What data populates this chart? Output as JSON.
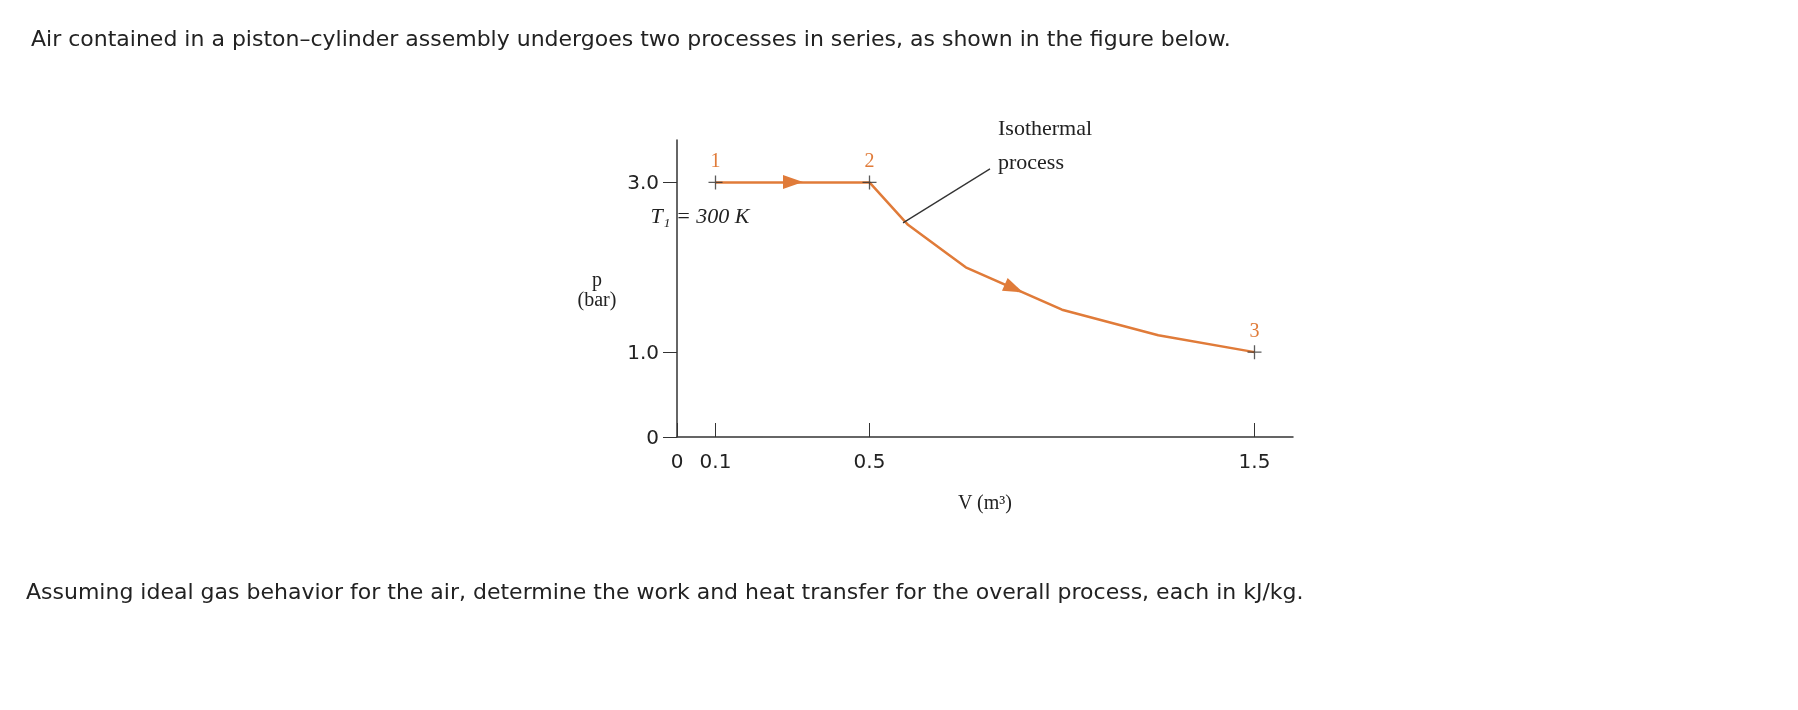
{
  "chart_data": {
    "type": "line",
    "title": "Air contained in a piston–cylinder assembly undergoes two processes in series, as shown in the figure below.",
    "xlabel": "V (m³)",
    "ylabel": "p\n(bar)",
    "series": [
      {
        "color": "#e07b39",
        "x": [
          0.1,
          0.5
        ],
        "values": [
          3.0,
          3.0
        ]
      },
      {
        "color": "#e07b39",
        "x": [
          0.5,
          0.6,
          0.75,
          1.0,
          1.25,
          1.5
        ],
        "values": [
          3.0,
          2.5,
          2.0,
          1.5,
          1.2,
          1.0
        ]
      },
      {
        "type": "scatter",
        "marker": "cross",
        "color": "#333333",
        "x": [
          0.1,
          0.5,
          1.5
        ],
        "values": [
          3.0,
          3.0,
          1.0
        ]
      }
    ],
    "xlim": [
      0,
      1.6
    ],
    "ylim": [
      0,
      3.5
    ],
    "xticks": [
      0,
      0.1,
      0.5,
      1.5
    ],
    "yticks": [
      0,
      {
        "value": 1,
        "label": "1.0"
      },
      {
        "value": 3,
        "label": "3.0"
      }
    ],
    "grid": false,
    "annotations": [
      {
        "text": "1",
        "x": 0.1,
        "y": 3.0
      },
      {
        "text": "2",
        "x": 0.5,
        "y": 3.0
      },
      {
        "text": "3",
        "x": 1.5,
        "y": 1.0
      },
      {
        "text": "T₁ = 300 K",
        "x": 0.1,
        "y": 3.0
      },
      {
        "text": "Isothermal\nprocess",
        "x": 0.6,
        "y": 2.5
      },
      "Assuming ideal gas behavior for the air, determine the work and heat transfer for the overall process, each in kJ/kg."
    ]
  }
}
